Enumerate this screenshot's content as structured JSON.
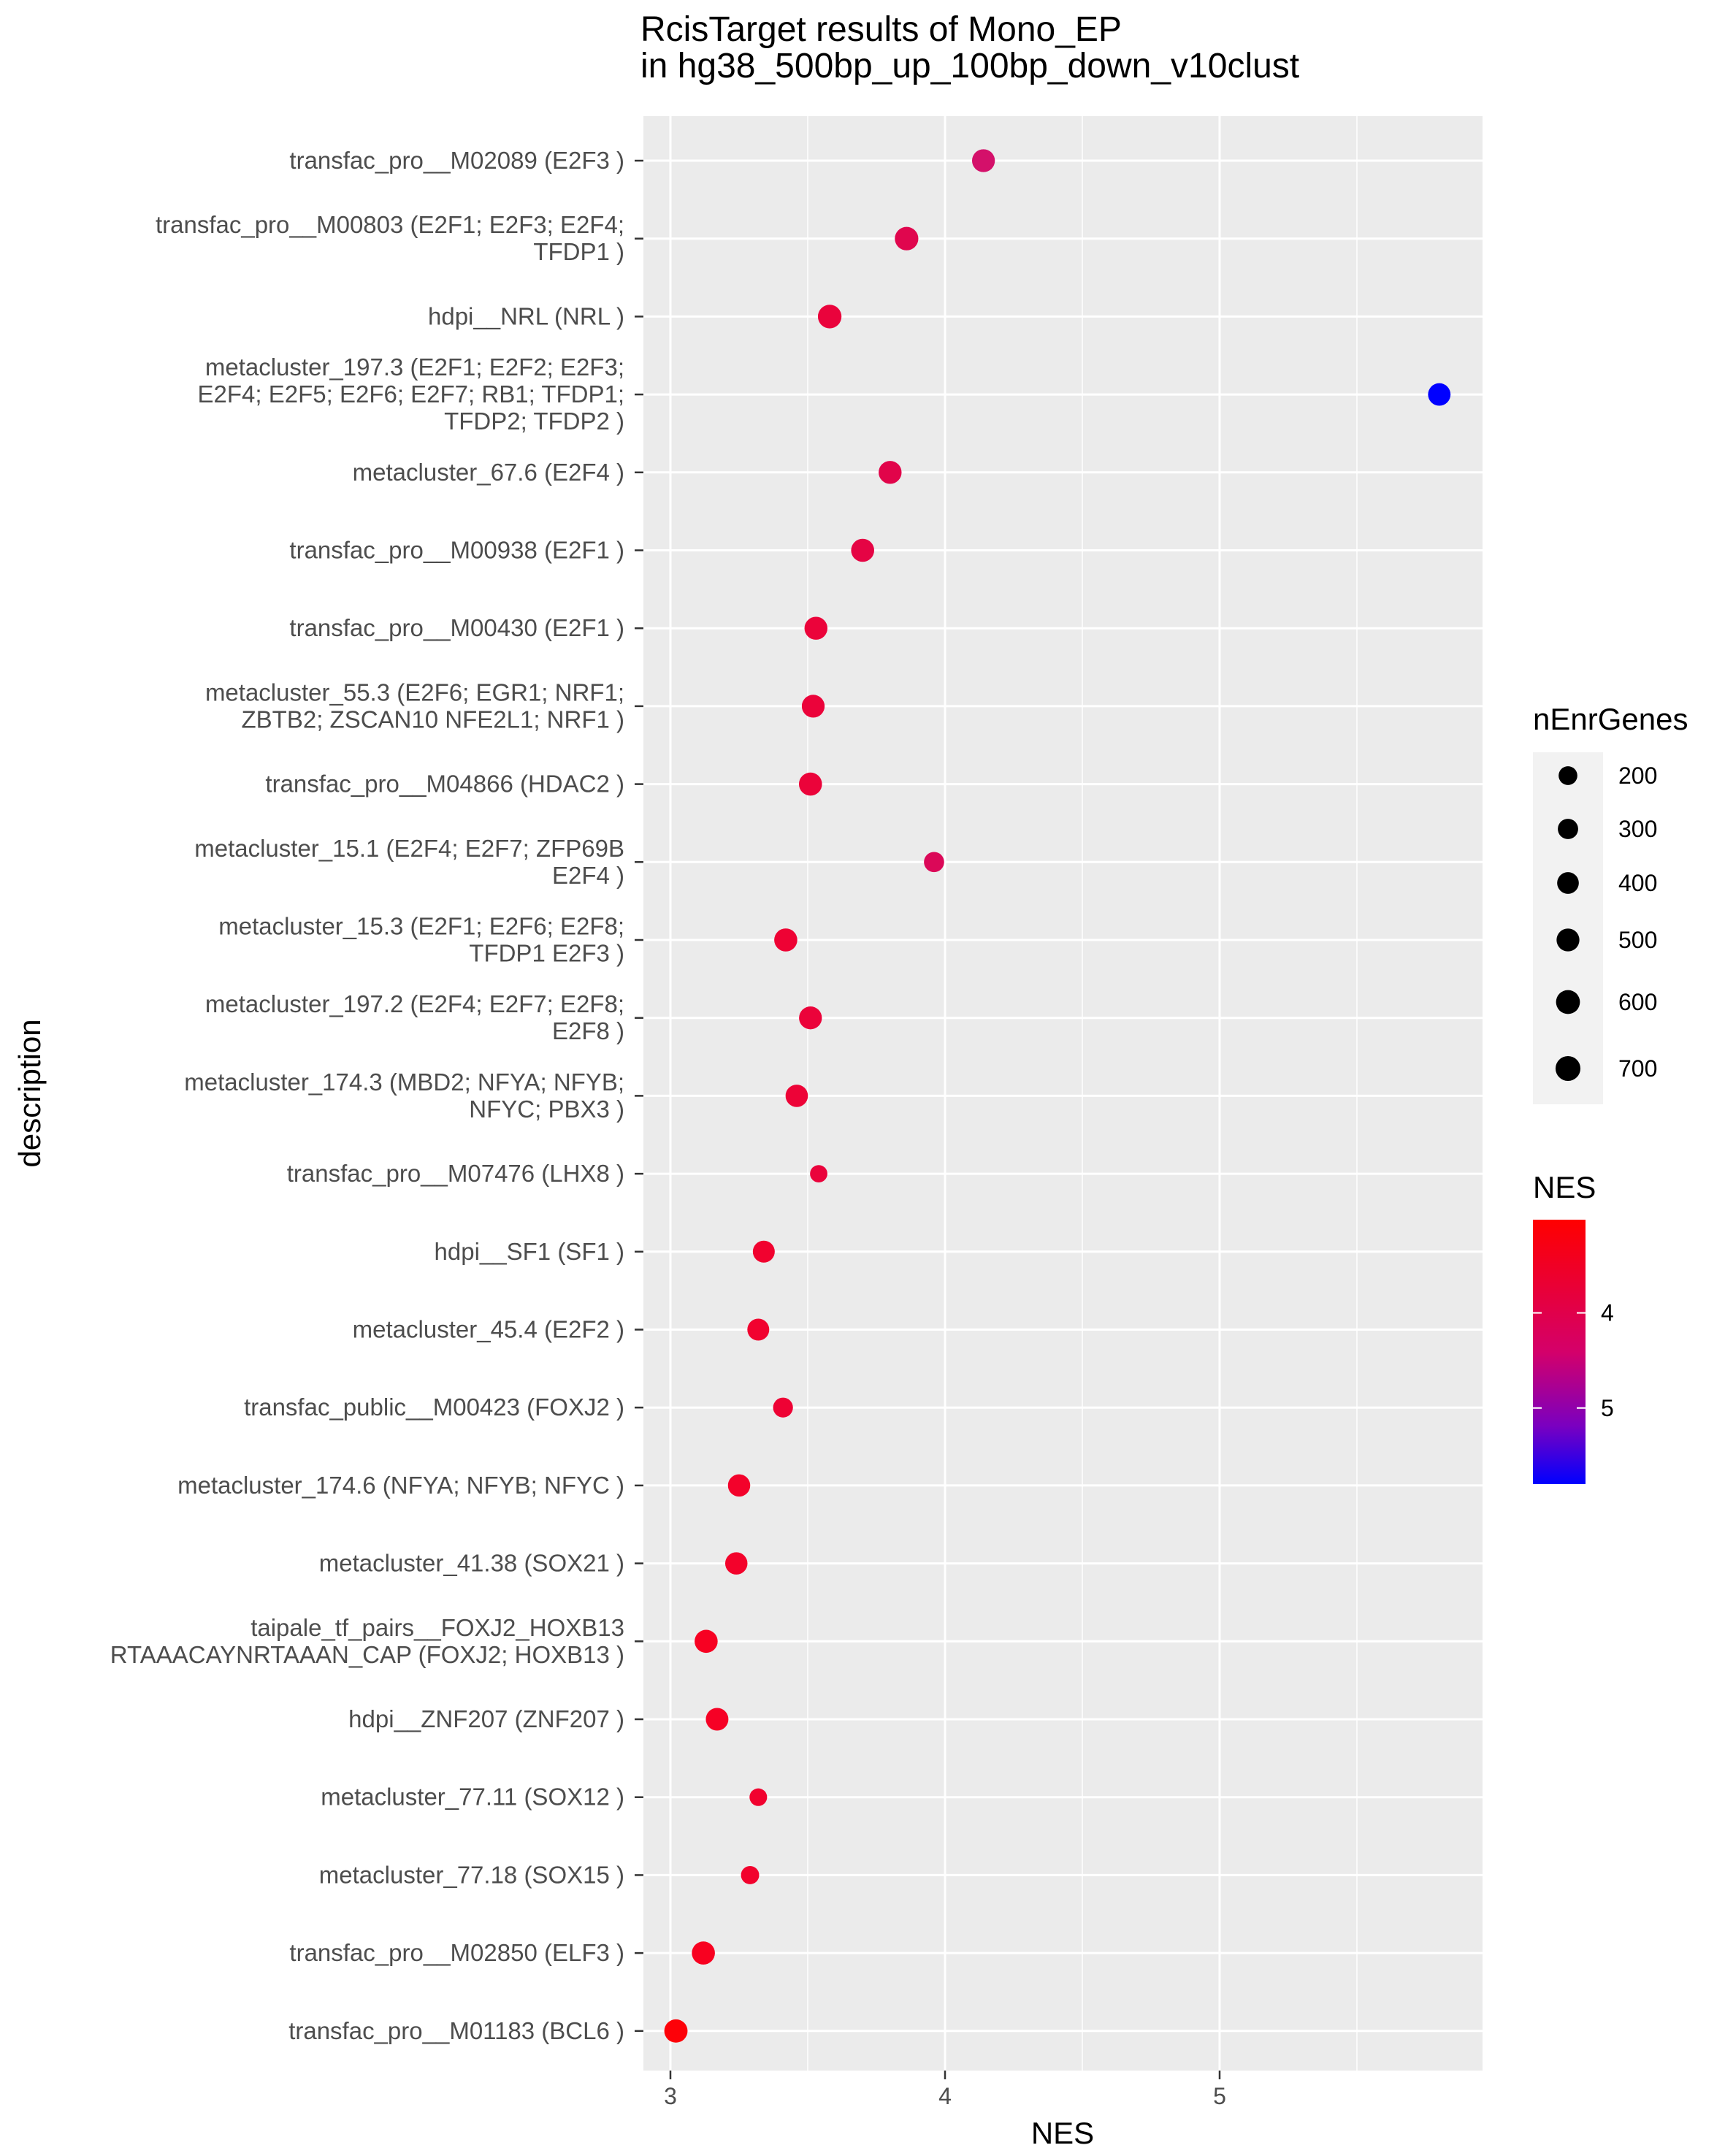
{
  "chart_data": {
    "type": "scatter",
    "title": [
      "RcisTarget results of Mono_EP",
      "in hg38_500bp_up_100bp_down_v10clust"
    ],
    "xlabel": "NES",
    "ylabel": "description",
    "xlim": [
      2.9,
      5.95
    ],
    "x_ticks": [
      3,
      4,
      5
    ],
    "grid": true,
    "points": [
      {
        "label": [
          "transfac_pro__M02089 (E2F3 )"
        ],
        "nes": 4.14,
        "nEnrGenes": 500,
        "color": "#d4106a"
      },
      {
        "label": [
          "transfac_pro__M00803 (E2F1; E2F3; E2F4;",
          "TFDP1 )"
        ],
        "nes": 3.86,
        "nEnrGenes": 560,
        "color": "#e0064e"
      },
      {
        "label": [
          "hdpi__NRL (NRL )"
        ],
        "nes": 3.58,
        "nEnrGenes": 570,
        "color": "#ea033c"
      },
      {
        "label": [
          "metacluster_197.3 (E2F1; E2F2; E2F3;",
          "E2F4; E2F5; E2F6; E2F7; RB1; TFDP1;",
          "TFDP2; TFDP2 )"
        ],
        "nes": 5.8,
        "nEnrGenes": 470,
        "color": "#0000ff"
      },
      {
        "label": [
          "metacluster_67.6 (E2F4 )"
        ],
        "nes": 3.8,
        "nEnrGenes": 510,
        "color": "#e1044a"
      },
      {
        "label": [
          "transfac_pro__M00938 (E2F1 )"
        ],
        "nes": 3.7,
        "nEnrGenes": 520,
        "color": "#e50444"
      },
      {
        "label": [
          "transfac_pro__M00430 (E2F1 )"
        ],
        "nes": 3.53,
        "nEnrGenes": 510,
        "color": "#eb033a"
      },
      {
        "label": [
          "metacluster_55.3 (E2F6; EGR1; NRF1;",
          "ZBTB2; ZSCAN10 NFE2L1; NRF1 )"
        ],
        "nes": 3.52,
        "nEnrGenes": 500,
        "color": "#eb033a"
      },
      {
        "label": [
          "transfac_pro__M04866 (HDAC2 )"
        ],
        "nes": 3.51,
        "nEnrGenes": 520,
        "color": "#eb033a"
      },
      {
        "label": [
          "metacluster_15.1 (E2F4; E2F7; ZFP69B",
          "E2F4 )"
        ],
        "nes": 3.96,
        "nEnrGenes": 290,
        "color": "#db0858"
      },
      {
        "label": [
          "metacluster_15.3 (E2F1; E2F6; E2F8;",
          "TFDP1 E2F3 )"
        ],
        "nes": 3.42,
        "nEnrGenes": 520,
        "color": "#ee0234"
      },
      {
        "label": [
          "metacluster_197.2 (E2F4; E2F7; E2F8;",
          "E2F8 )"
        ],
        "nes": 3.51,
        "nEnrGenes": 500,
        "color": "#eb033a"
      },
      {
        "label": [
          "metacluster_174.3 (MBD2; NFYA; NFYB;",
          "NFYC; PBX3 )"
        ],
        "nes": 3.46,
        "nEnrGenes": 460,
        "color": "#ed0337"
      },
      {
        "label": [
          "transfac_pro__M07476 (LHX8 )"
        ],
        "nes": 3.54,
        "nEnrGenes": 130,
        "color": "#ea033c"
      },
      {
        "label": [
          "hdpi__SF1 (SF1 )"
        ],
        "nes": 3.34,
        "nEnrGenes": 420,
        "color": "#f1022f"
      },
      {
        "label": [
          "metacluster_45.4 (E2F2 )"
        ],
        "nes": 3.32,
        "nEnrGenes": 420,
        "color": "#f1022f"
      },
      {
        "label": [
          "transfac_public__M00423 (FOXJ2 )"
        ],
        "nes": 3.41,
        "nEnrGenes": 270,
        "color": "#ee0234"
      },
      {
        "label": [
          "metacluster_174.6 (NFYA; NFYB; NFYC )"
        ],
        "nes": 3.25,
        "nEnrGenes": 450,
        "color": "#f3022b"
      },
      {
        "label": [
          "metacluster_41.38 (SOX21 )"
        ],
        "nes": 3.24,
        "nEnrGenes": 450,
        "color": "#f3022b"
      },
      {
        "label": [
          "taipale_tf_pairs__FOXJ2_HOXB13",
          "RTAAACAYNRTAAAN_CAP (FOXJ2; HOXB13 )"
        ],
        "nes": 3.13,
        "nEnrGenes": 520,
        "color": "#f70122"
      },
      {
        "label": [
          "hdpi__ZNF207 (ZNF207 )"
        ],
        "nes": 3.17,
        "nEnrGenes": 480,
        "color": "#f60125"
      },
      {
        "label": [
          "metacluster_77.11 (SOX12 )"
        ],
        "nes": 3.32,
        "nEnrGenes": 140,
        "color": "#f1022f"
      },
      {
        "label": [
          "metacluster_77.18 (SOX15 )"
        ],
        "nes": 3.29,
        "nEnrGenes": 170,
        "color": "#f2022d"
      },
      {
        "label": [
          "transfac_pro__M02850 (ELF3 )"
        ],
        "nes": 3.12,
        "nEnrGenes": 520,
        "color": "#f80120"
      },
      {
        "label": [
          "transfac_pro__M01183 (BCL6 )"
        ],
        "nes": 3.02,
        "nEnrGenes": 540,
        "color": "#fd0108"
      }
    ],
    "size_legend": {
      "title": "nEnrGenes",
      "values": [
        200,
        300,
        400,
        500,
        600,
        700
      ]
    },
    "color_legend": {
      "title": "NES",
      "ticks": [
        4,
        5
      ],
      "range": [
        3.02,
        5.8
      ],
      "low_color": "#ff0000",
      "high_color": "#0000ff"
    }
  }
}
